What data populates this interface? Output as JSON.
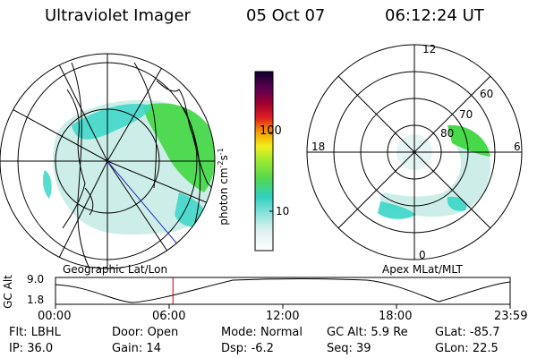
{
  "header": {
    "instrument": "Ultraviolet Imager",
    "date": "05 Oct 07",
    "time": "06:12:24 UT"
  },
  "left_panel": {
    "label": "Geographic Lat/Lon"
  },
  "right_panel": {
    "label": "Apex MLat/MLT",
    "mlt_labels": [
      "12",
      "18",
      "6",
      "0"
    ],
    "lat_labels": [
      "60",
      "70",
      "80"
    ]
  },
  "colorbar": {
    "unit_label": "photon cm",
    "unit_sup1": "-2",
    "unit_mid": "s",
    "unit_sup2": "-1",
    "ticks": [
      "100",
      "10"
    ]
  },
  "altitude_plot": {
    "ylabel": "GC Alt",
    "y_ticks": [
      "9.0",
      "1.8"
    ],
    "x_ticks": [
      "00:00",
      "06:00",
      "12:00",
      "18:00",
      "23:59"
    ],
    "current_time_hours": 6.2,
    "marker_color": "#d00000"
  },
  "footer": {
    "row1": [
      {
        "label": "Flt:",
        "value": "LBHL"
      },
      {
        "label": "Door:",
        "value": "Open"
      },
      {
        "label": "Mode:",
        "value": "Normal"
      },
      {
        "label": "GC Alt:",
        "value": "5.9 Re"
      },
      {
        "label": "GLat:",
        "value": "-85.7"
      }
    ],
    "row2": [
      {
        "label": "IP:",
        "value": "36.0"
      },
      {
        "label": "Gain:",
        "value": "14"
      },
      {
        "label": "Dsp:",
        "value": "-6.2"
      },
      {
        "label": "Seq:",
        "value": "39"
      },
      {
        "label": "GLon:",
        "value": "22.5"
      }
    ]
  },
  "colors": {
    "aurora_green": "#3ad63a",
    "aurora_cyan": "#3ad6c8",
    "aurora_light": "#c8ece6"
  }
}
